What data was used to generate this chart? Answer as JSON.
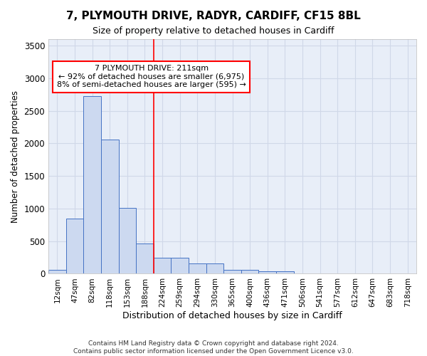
{
  "title": "7, PLYMOUTH DRIVE, RADYR, CARDIFF, CF15 8BL",
  "subtitle": "Size of property relative to detached houses in Cardiff",
  "xlabel": "Distribution of detached houses by size in Cardiff",
  "ylabel": "Number of detached properties",
  "bar_color": "#ccd9f0",
  "bar_edge_color": "#4472c4",
  "background_color": "#e8eef8",
  "grid_color": "#d0d8e8",
  "bin_labels": [
    "12sqm",
    "47sqm",
    "82sqm",
    "118sqm",
    "153sqm",
    "188sqm",
    "224sqm",
    "259sqm",
    "294sqm",
    "330sqm",
    "365sqm",
    "400sqm",
    "436sqm",
    "471sqm",
    "506sqm",
    "541sqm",
    "577sqm",
    "612sqm",
    "647sqm",
    "683sqm",
    "718sqm"
  ],
  "bar_heights": [
    65,
    850,
    2730,
    2060,
    1010,
    460,
    250,
    240,
    155,
    155,
    65,
    65,
    40,
    40,
    0,
    0,
    0,
    0,
    0,
    0,
    0
  ],
  "ylim": [
    0,
    3600
  ],
  "yticks": [
    0,
    500,
    1000,
    1500,
    2000,
    2500,
    3000,
    3500
  ],
  "red_line_bin": 6.0,
  "annotation_text_line1": "7 PLYMOUTH DRIVE: 211sqm",
  "annotation_text_line2": "← 92% of detached houses are smaller (6,975)",
  "annotation_text_line3": "8% of semi-detached houses are larger (595) →",
  "footnote_line1": "Contains HM Land Registry data © Crown copyright and database right 2024.",
  "footnote_line2": "Contains public sector information licensed under the Open Government Licence v3.0."
}
